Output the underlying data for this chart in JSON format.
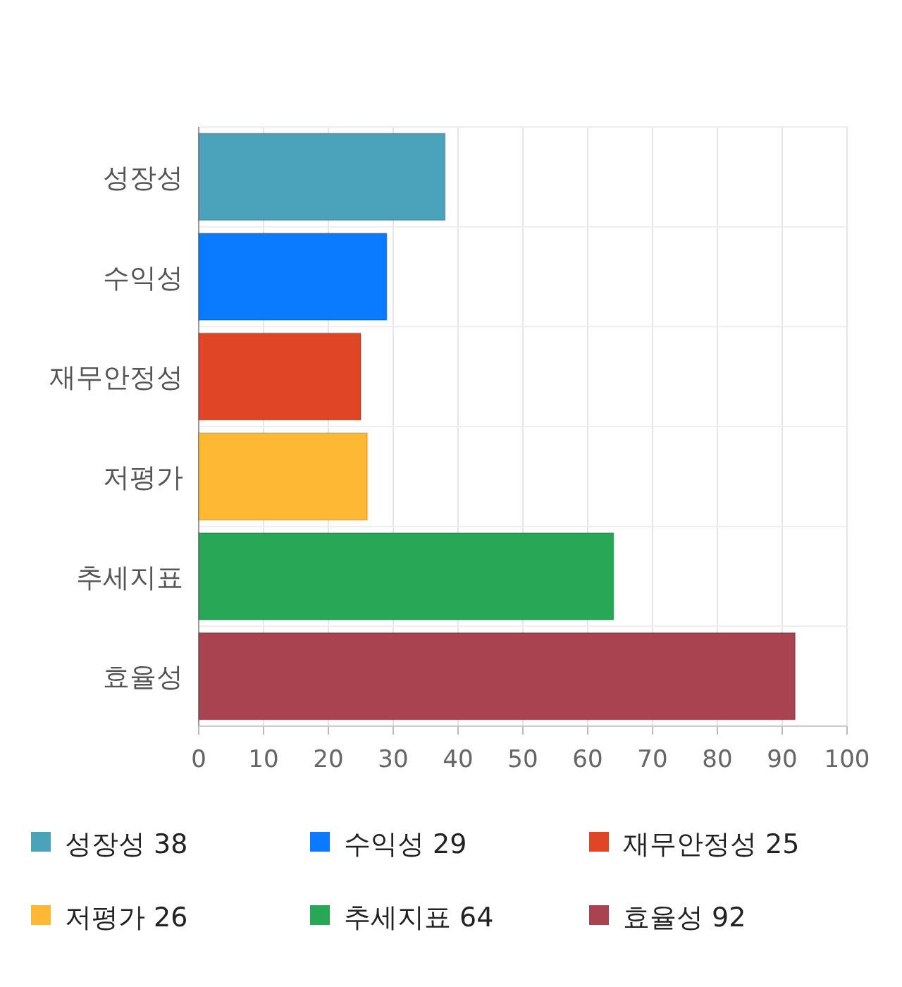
{
  "chart_data": {
    "type": "bar",
    "orientation": "horizontal",
    "stacked": true,
    "categories": [
      "성장성",
      "수익성",
      "재무안정성",
      "저평가",
      "추세지표",
      "효율성"
    ],
    "series": [
      {
        "name": "성장성 38",
        "color": "#4aa3bb",
        "values": [
          38,
          null,
          null,
          null,
          null,
          null
        ]
      },
      {
        "name": "수익성 29",
        "color": "#0a7aff",
        "values": [
          null,
          29,
          null,
          null,
          null,
          null
        ]
      },
      {
        "name": "재무안정성 25",
        "color": "#e04525",
        "values": [
          null,
          null,
          25,
          null,
          null,
          null
        ]
      },
      {
        "name": "저평가 26",
        "color": "#ffb833",
        "values": [
          null,
          null,
          null,
          26,
          null,
          null
        ]
      },
      {
        "name": "추세지표 64",
        "color": "#28a757",
        "values": [
          null,
          null,
          null,
          null,
          64,
          null
        ]
      },
      {
        "name": "효율성 92",
        "color": "#a8434f",
        "values": [
          null,
          null,
          null,
          null,
          null,
          92
        ]
      }
    ],
    "xlim": [
      0,
      100
    ],
    "xticks": [
      0,
      10,
      20,
      30,
      40,
      50,
      60,
      70,
      80,
      90,
      100
    ],
    "grid": true,
    "legend": "bottom"
  }
}
